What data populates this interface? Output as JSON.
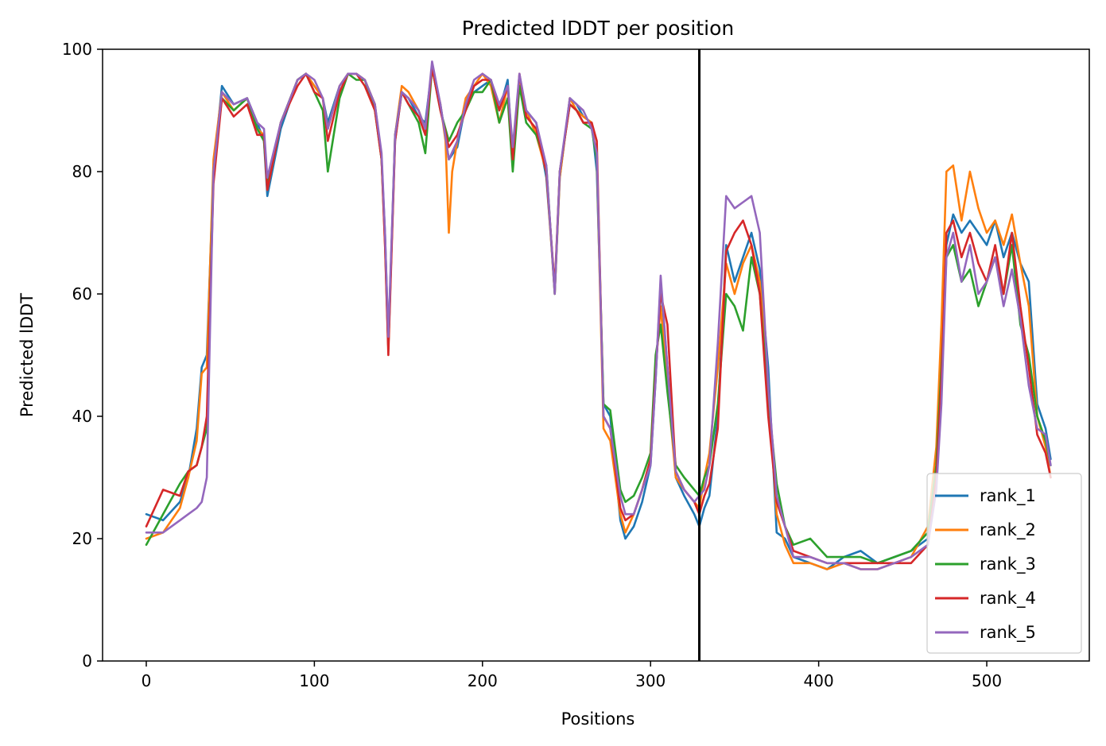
{
  "chart_data": {
    "type": "line",
    "title": "Predicted lDDT per position",
    "xlabel": "Positions",
    "ylabel": "Predicted lDDT",
    "xlim": [
      -26,
      561
    ],
    "ylim": [
      0,
      100
    ],
    "xticks": [
      0,
      100,
      200,
      300,
      400,
      500
    ],
    "yticks": [
      0,
      20,
      40,
      60,
      80,
      100
    ],
    "grid": false,
    "legend_position": "lower right",
    "vline_x": 329,
    "colors": [
      "#1f77b4",
      "#ff7f0e",
      "#2ca02c",
      "#d62728",
      "#9467bd"
    ],
    "series": [
      {
        "name": "rank_1",
        "x": [
          0,
          10,
          20,
          25,
          30,
          33,
          36,
          40,
          45,
          52,
          60,
          66,
          70,
          72,
          80,
          90,
          95,
          100,
          105,
          108,
          115,
          120,
          125,
          130,
          136,
          140,
          142,
          144,
          148,
          152,
          156,
          162,
          166,
          170,
          175,
          180,
          185,
          190,
          195,
          200,
          205,
          210,
          215,
          218,
          222,
          226,
          232,
          238,
          243,
          246,
          252,
          256,
          260,
          265,
          268,
          272,
          276,
          282,
          285,
          290,
          295,
          300,
          303,
          306,
          310,
          315,
          320,
          326,
          329,
          332,
          335,
          340,
          345,
          350,
          355,
          360,
          365,
          370,
          375,
          380,
          385,
          395,
          405,
          415,
          425,
          435,
          445,
          455,
          465,
          470,
          473,
          476,
          480,
          485,
          490,
          495,
          500,
          505,
          510,
          515,
          520,
          525,
          530,
          535,
          538
        ],
        "values": [
          24,
          23,
          26,
          30,
          38,
          48,
          50,
          80,
          94,
          91,
          92,
          88,
          85,
          76,
          87,
          95,
          96,
          94,
          92,
          88,
          94,
          96,
          96,
          95,
          91,
          82,
          70,
          52,
          85,
          93,
          92,
          89,
          88,
          97,
          91,
          82,
          84,
          91,
          93,
          94,
          95,
          90,
          95,
          82,
          95,
          90,
          88,
          79,
          61,
          79,
          92,
          91,
          89,
          88,
          80,
          42,
          40,
          23,
          20,
          22,
          26,
          32,
          46,
          62,
          48,
          30,
          27,
          24,
          22,
          25,
          27,
          40,
          68,
          62,
          66,
          70,
          64,
          48,
          21,
          20,
          17,
          16,
          15,
          17,
          18,
          16,
          17,
          18,
          20,
          30,
          45,
          68,
          73,
          70,
          72,
          70,
          68,
          72,
          66,
          70,
          65,
          62,
          42,
          38,
          33
        ]
      },
      {
        "name": "rank_2",
        "x": [
          0,
          10,
          20,
          25,
          30,
          33,
          36,
          40,
          45,
          52,
          60,
          66,
          70,
          72,
          80,
          90,
          95,
          100,
          105,
          108,
          115,
          120,
          125,
          130,
          136,
          140,
          142,
          144,
          148,
          152,
          156,
          162,
          166,
          170,
          175,
          178,
          180,
          182,
          185,
          190,
          195,
          200,
          205,
          210,
          215,
          218,
          222,
          226,
          232,
          238,
          243,
          246,
          252,
          256,
          260,
          265,
          268,
          272,
          276,
          282,
          285,
          290,
          295,
          300,
          303,
          306,
          310,
          315,
          320,
          326,
          329,
          332,
          335,
          340,
          345,
          350,
          355,
          360,
          365,
          370,
          375,
          380,
          385,
          395,
          405,
          415,
          425,
          435,
          445,
          455,
          465,
          470,
          473,
          476,
          480,
          485,
          490,
          495,
          500,
          505,
          510,
          515,
          520,
          525,
          530,
          535,
          538
        ],
        "values": [
          20,
          21,
          25,
          30,
          36,
          47,
          48,
          82,
          93,
          90,
          92,
          87,
          86,
          77,
          88,
          95,
          96,
          94,
          92,
          87,
          94,
          96,
          96,
          95,
          91,
          82,
          68,
          51,
          86,
          94,
          93,
          90,
          87,
          97,
          91,
          85,
          70,
          80,
          85,
          92,
          94,
          96,
          94,
          88,
          94,
          82,
          95,
          90,
          86,
          80,
          60,
          79,
          92,
          90,
          89,
          88,
          82,
          38,
          36,
          24,
          21,
          24,
          28,
          33,
          48,
          58,
          45,
          30,
          28,
          26,
          25,
          30,
          34,
          48,
          65,
          60,
          65,
          68,
          62,
          45,
          24,
          19,
          16,
          16,
          15,
          16,
          15,
          15,
          16,
          17,
          22,
          35,
          55,
          80,
          81,
          72,
          80,
          74,
          70,
          72,
          68,
          73,
          65,
          58,
          40,
          35,
          30
        ]
      },
      {
        "name": "rank_3",
        "x": [
          0,
          10,
          20,
          25,
          30,
          33,
          36,
          40,
          45,
          52,
          60,
          66,
          70,
          72,
          80,
          90,
          95,
          100,
          105,
          108,
          115,
          120,
          125,
          130,
          136,
          140,
          142,
          144,
          148,
          152,
          156,
          162,
          166,
          170,
          175,
          180,
          185,
          190,
          195,
          200,
          205,
          210,
          215,
          218,
          222,
          226,
          232,
          238,
          243,
          246,
          252,
          256,
          260,
          265,
          268,
          272,
          276,
          282,
          285,
          290,
          295,
          300,
          303,
          306,
          310,
          315,
          320,
          326,
          329,
          332,
          335,
          340,
          345,
          350,
          355,
          360,
          365,
          370,
          375,
          380,
          385,
          395,
          405,
          415,
          425,
          435,
          445,
          455,
          465,
          470,
          473,
          476,
          480,
          485,
          490,
          495,
          500,
          505,
          510,
          515,
          520,
          525,
          530,
          535,
          538
        ],
        "values": [
          19,
          24,
          29,
          31,
          32,
          35,
          38,
          80,
          92,
          90,
          92,
          87,
          85,
          78,
          88,
          95,
          96,
          93,
          90,
          80,
          92,
          96,
          95,
          95,
          90,
          82,
          69,
          51,
          86,
          93,
          91,
          88,
          83,
          97,
          90,
          85,
          88,
          90,
          93,
          93,
          95,
          88,
          92,
          80,
          94,
          88,
          86,
          81,
          60,
          80,
          91,
          90,
          88,
          87,
          82,
          42,
          41,
          28,
          26,
          27,
          30,
          34,
          50,
          55,
          44,
          32,
          30,
          28,
          27,
          30,
          32,
          42,
          60,
          58,
          54,
          66,
          60,
          43,
          29,
          22,
          19,
          20,
          17,
          17,
          17,
          16,
          17,
          18,
          21,
          32,
          48,
          66,
          68,
          62,
          64,
          58,
          62,
          66,
          60,
          68,
          55,
          50,
          40,
          36,
          32
        ]
      },
      {
        "name": "rank_4",
        "x": [
          0,
          10,
          20,
          25,
          30,
          33,
          36,
          40,
          45,
          52,
          60,
          66,
          70,
          72,
          80,
          90,
          95,
          100,
          105,
          108,
          115,
          120,
          125,
          130,
          136,
          140,
          142,
          144,
          148,
          152,
          156,
          162,
          166,
          170,
          175,
          180,
          185,
          190,
          195,
          200,
          205,
          210,
          215,
          218,
          222,
          226,
          232,
          238,
          243,
          246,
          252,
          256,
          260,
          265,
          268,
          272,
          276,
          282,
          285,
          290,
          295,
          300,
          303,
          306,
          310,
          315,
          320,
          326,
          329,
          332,
          335,
          340,
          345,
          350,
          355,
          360,
          365,
          370,
          375,
          380,
          385,
          395,
          405,
          415,
          425,
          435,
          445,
          455,
          465,
          470,
          473,
          476,
          480,
          485,
          490,
          495,
          500,
          505,
          510,
          515,
          520,
          525,
          530,
          535,
          538
        ],
        "values": [
          22,
          28,
          27,
          31,
          32,
          35,
          40,
          78,
          92,
          89,
          91,
          86,
          86,
          77,
          88,
          94,
          96,
          93,
          92,
          85,
          93,
          96,
          96,
          94,
          90,
          82,
          68,
          50,
          85,
          93,
          91,
          89,
          86,
          97,
          90,
          84,
          86,
          90,
          94,
          95,
          95,
          90,
          94,
          82,
          96,
          89,
          87,
          80,
          61,
          80,
          91,
          90,
          88,
          88,
          85,
          40,
          38,
          25,
          23,
          24,
          28,
          33,
          47,
          60,
          55,
          31,
          28,
          26,
          24,
          27,
          29,
          38,
          67,
          70,
          72,
          68,
          60,
          40,
          26,
          22,
          18,
          17,
          16,
          16,
          16,
          16,
          16,
          16,
          19,
          30,
          46,
          70,
          72,
          66,
          70,
          65,
          62,
          68,
          60,
          70,
          58,
          48,
          37,
          34,
          30
        ]
      },
      {
        "name": "rank_5",
        "x": [
          0,
          10,
          20,
          25,
          30,
          33,
          36,
          40,
          45,
          52,
          60,
          66,
          70,
          72,
          80,
          90,
          95,
          100,
          105,
          108,
          115,
          120,
          125,
          130,
          136,
          140,
          142,
          144,
          148,
          152,
          156,
          162,
          166,
          170,
          175,
          180,
          185,
          190,
          195,
          200,
          205,
          210,
          215,
          218,
          222,
          226,
          232,
          238,
          243,
          246,
          252,
          256,
          260,
          265,
          268,
          272,
          276,
          282,
          285,
          290,
          295,
          300,
          303,
          306,
          310,
          315,
          320,
          326,
          329,
          332,
          335,
          340,
          345,
          350,
          355,
          360,
          365,
          370,
          375,
          380,
          385,
          395,
          405,
          415,
          425,
          435,
          445,
          455,
          465,
          470,
          473,
          476,
          480,
          485,
          490,
          495,
          500,
          505,
          510,
          515,
          520,
          525,
          530,
          535,
          538
        ],
        "values": [
          21,
          21,
          23,
          24,
          25,
          26,
          30,
          80,
          93,
          91,
          92,
          88,
          87,
          79,
          88,
          95,
          96,
          95,
          92,
          87,
          94,
          96,
          96,
          95,
          91,
          83,
          70,
          53,
          86,
          93,
          92,
          90,
          87,
          98,
          91,
          82,
          85,
          91,
          95,
          96,
          95,
          91,
          94,
          84,
          96,
          90,
          88,
          81,
          60,
          80,
          92,
          91,
          90,
          87,
          83,
          40,
          38,
          27,
          24,
          24,
          28,
          32,
          46,
          63,
          48,
          31,
          28,
          26,
          27,
          28,
          32,
          52,
          76,
          74,
          75,
          76,
          70,
          45,
          27,
          22,
          17,
          17,
          16,
          16,
          15,
          15,
          16,
          17,
          19,
          28,
          42,
          66,
          70,
          62,
          68,
          60,
          62,
          66,
          58,
          64,
          56,
          45,
          38,
          37,
          32
        ]
      }
    ]
  }
}
